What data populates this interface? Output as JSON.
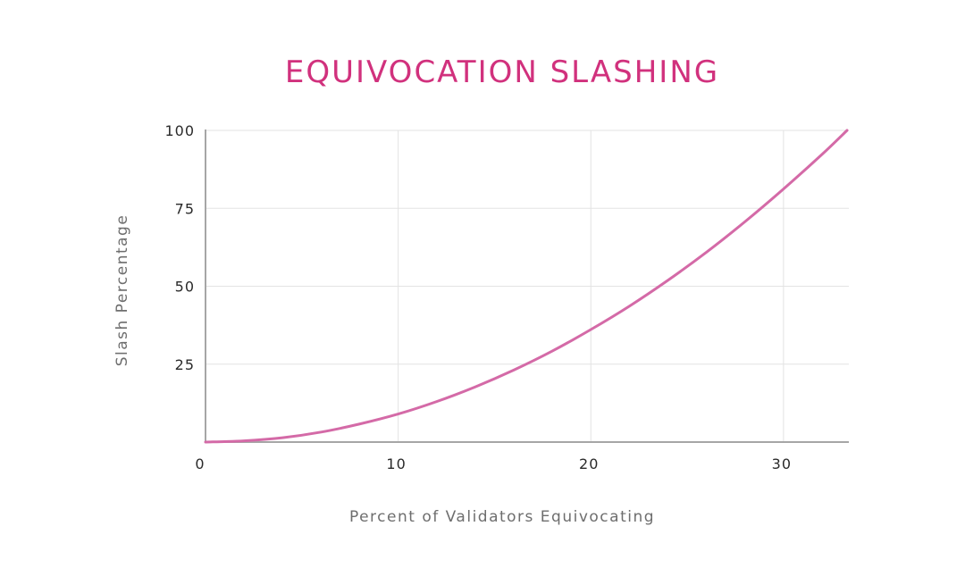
{
  "chart_data": {
    "type": "line",
    "title": "EQUIVOCATION SLASHING",
    "xlabel": "Percent of Validators Equivocating",
    "ylabel": "Slash Percentage",
    "xlim": [
      0,
      33.3
    ],
    "ylim": [
      0,
      100
    ],
    "x_ticks": [
      0,
      10,
      20,
      30
    ],
    "y_ticks": [
      25,
      50,
      75,
      100
    ],
    "grid": true,
    "series": [
      {
        "color": "#d46aa7",
        "x": [
          0,
          2,
          4,
          6,
          8,
          10,
          12,
          14,
          16,
          18,
          20,
          22,
          24,
          26,
          28,
          30,
          32,
          33.3
        ],
        "y": [
          0,
          0.4,
          1.4,
          3.2,
          5.8,
          9,
          13,
          17.7,
          23.1,
          29.2,
          36.1,
          43.6,
          51.9,
          60.9,
          70.7,
          81.2,
          92.3,
          100
        ]
      }
    ],
    "title_color": "#d1317d"
  }
}
